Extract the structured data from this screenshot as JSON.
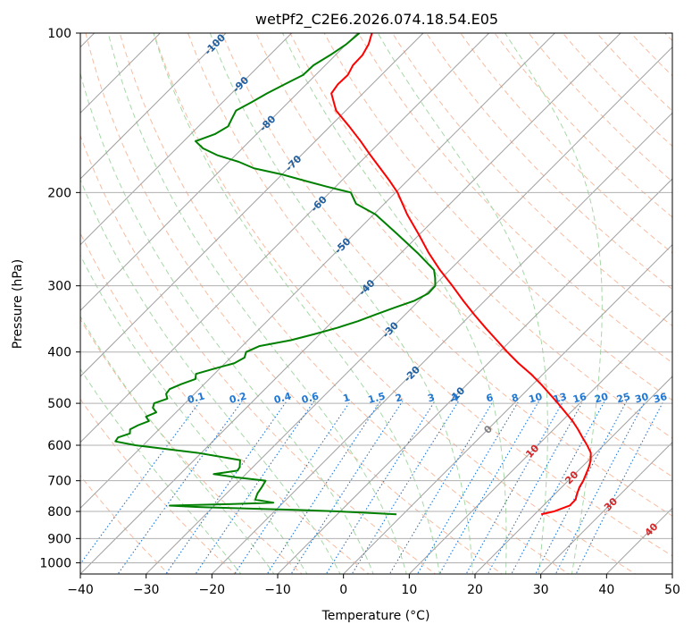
{
  "chart_data": {
    "type": "line",
    "title": "wetPf2_C2E6.2026.074.18.54.E05",
    "xlabel": "Temperature (°C)",
    "ylabel": "Pressure (hPa)",
    "xlim": [
      -40,
      50
    ],
    "ylim": [
      1050,
      100
    ],
    "y_scale": "log",
    "x_ticks": [
      -40,
      -30,
      -20,
      -10,
      0,
      10,
      20,
      30,
      40,
      50
    ],
    "y_ticks": [
      1000,
      900,
      800,
      700,
      600,
      500,
      400,
      300,
      200,
      100
    ],
    "grid": true,
    "colors": {
      "temperature": "#ff0000",
      "dewpoint": "#008000",
      "isotherm": "#a0a0a0",
      "dry_adiabat": "#f4a582",
      "moist_adiabat": "#a6d8a6",
      "mixing_ratio": "#1f77d4",
      "isotherm_label_cold": "#1f5fa0",
      "isotherm_label_zero": "#7f7f7f",
      "isotherm_label_warm": "#d62728"
    },
    "isotherm_labels": [
      {
        "value": -100,
        "text": "-100"
      },
      {
        "value": -90,
        "text": "-90"
      },
      {
        "value": -80,
        "text": "-80"
      },
      {
        "value": -70,
        "text": "-70"
      },
      {
        "value": -60,
        "text": "-60"
      },
      {
        "value": -50,
        "text": "-50"
      },
      {
        "value": -40,
        "text": "-40"
      },
      {
        "value": -30,
        "text": "-30"
      },
      {
        "value": -20,
        "text": "-20"
      },
      {
        "value": -10,
        "text": "-10"
      },
      {
        "value": 0,
        "text": "0"
      },
      {
        "value": 10,
        "text": "10"
      },
      {
        "value": 20,
        "text": "20"
      },
      {
        "value": 30,
        "text": "30"
      },
      {
        "value": 40,
        "text": "40"
      }
    ],
    "mixing_ratio_labels": [
      "0.1",
      "0.2",
      "0.4",
      "0.6",
      "1",
      "1.5",
      "2",
      "3",
      "4",
      "6",
      "8",
      "10",
      "13",
      "16",
      "20",
      "25",
      "30",
      "36"
    ],
    "mixing_ratios": [
      0.1,
      0.2,
      0.4,
      0.6,
      1,
      1.5,
      2,
      3,
      4,
      6,
      8,
      10,
      13,
      16,
      20,
      25,
      30,
      36
    ],
    "series": [
      {
        "key": "temperature",
        "pressure": [
          810,
          800,
          780,
          760,
          740,
          720,
          700,
          680,
          660,
          640,
          620,
          600,
          580,
          560,
          540,
          520,
          500,
          480,
          460,
          440,
          420,
          400,
          380,
          360,
          340,
          320,
          300,
          280,
          260,
          240,
          220,
          200,
          190,
          180,
          170,
          160,
          150,
          140,
          130,
          125,
          120,
          115,
          110,
          105,
          100
        ],
        "temperature": [
          21.0,
          22.5,
          24.0,
          24.0,
          23.3,
          22.7,
          22.3,
          21.7,
          21.1,
          20.3,
          19.2,
          17.5,
          15.6,
          13.7,
          11.6,
          9.2,
          6.7,
          4.0,
          1.2,
          -1.9,
          -5.4,
          -8.8,
          -12.2,
          -15.8,
          -19.5,
          -23.3,
          -27.2,
          -31.5,
          -35.8,
          -40.1,
          -44.9,
          -49.7,
          -52.7,
          -56.0,
          -59.5,
          -63.1,
          -67.1,
          -71.5,
          -74.8,
          -75.2,
          -75.1,
          -75.8,
          -75.9,
          -76.6,
          -77.8
        ]
      },
      {
        "key": "dewpoint",
        "pressure": [
          810,
          805,
          800,
          795,
          790,
          785,
          780,
          775,
          770,
          760,
          740,
          720,
          700,
          690,
          680,
          670,
          660,
          640,
          620,
          600,
          590,
          580,
          570,
          560,
          550,
          540,
          530,
          520,
          510,
          500,
          490,
          480,
          470,
          460,
          450,
          440,
          430,
          420,
          410,
          400,
          390,
          380,
          370,
          360,
          350,
          340,
          330,
          320,
          310,
          300,
          290,
          280,
          260,
          240,
          220,
          210,
          200,
          195,
          190,
          185,
          180,
          175,
          170,
          165,
          160,
          155,
          150,
          145,
          140,
          135,
          130,
          125,
          120,
          115,
          110,
          105,
          100
        ],
        "temperature": [
          -1.0,
          -5.6,
          -10.3,
          -16.6,
          -24.7,
          -32.2,
          -36.8,
          -28.0,
          -21.5,
          -24.7,
          -25.3,
          -25.6,
          -26.0,
          -30.9,
          -34.9,
          -31.8,
          -32.0,
          -33.0,
          -40.6,
          -51.2,
          -54.8,
          -55.0,
          -53.8,
          -54.4,
          -53.8,
          -52.8,
          -53.9,
          -53.0,
          -54.2,
          -54.7,
          -53.4,
          -54.3,
          -54.5,
          -53.5,
          -52.1,
          -52.8,
          -50.8,
          -48.6,
          -47.9,
          -48.5,
          -47.4,
          -43.5,
          -40.8,
          -38.3,
          -36.2,
          -34.5,
          -32.7,
          -30.7,
          -29.7,
          -29.8,
          -31.0,
          -32.4,
          -37.5,
          -43.3,
          -49.7,
          -54.3,
          -56.8,
          -61.3,
          -65.6,
          -69.9,
          -75.2,
          -78.5,
          -82.8,
          -86.0,
          -88.2,
          -86.3,
          -85.5,
          -86.1,
          -86.7,
          -85.6,
          -84.6,
          -83.3,
          -81.9,
          -81.8,
          -80.8,
          -80.0,
          -79.7
        ]
      }
    ]
  }
}
